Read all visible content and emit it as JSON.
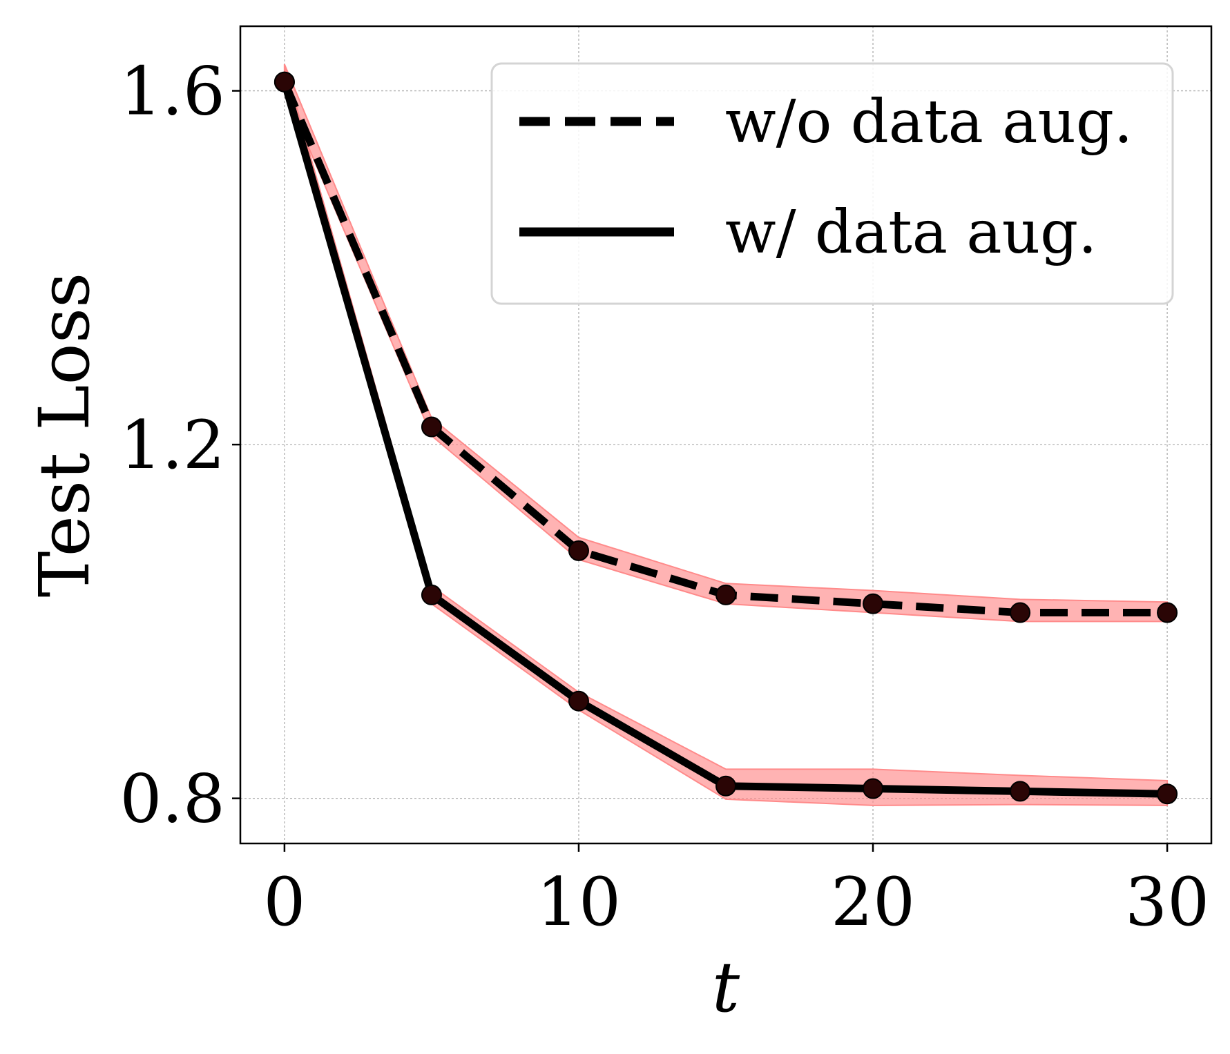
{
  "chart_data": {
    "type": "line",
    "title": "",
    "xlabel": "t",
    "ylabel": "Test Loss",
    "xlim": [
      -1.5,
      31.5
    ],
    "ylim": [
      0.749,
      1.673
    ],
    "x_ticks": [
      0,
      10,
      20,
      30
    ],
    "x_tick_labels": [
      "0",
      "10",
      "20",
      "30"
    ],
    "y_ticks": [
      0.8,
      1.2,
      1.6
    ],
    "y_tick_labels": [
      "0.8",
      "1.2",
      "1.6"
    ],
    "grid": true,
    "legend_position": "top-right",
    "band_color": "#ff8a8a",
    "line_color": "#000000",
    "series": [
      {
        "name": "w/o data aug.",
        "style": "dashed",
        "x": [
          0,
          5,
          10,
          15,
          20,
          25,
          30
        ],
        "y": [
          1.61,
          1.22,
          1.08,
          1.03,
          1.02,
          1.01,
          1.01
        ],
        "band_lower": [
          1.6,
          1.21,
          1.07,
          1.02,
          1.01,
          1.0,
          1.0
        ],
        "band_upper": [
          1.63,
          1.23,
          1.095,
          1.043,
          1.035,
          1.025,
          1.022
        ]
      },
      {
        "name": "w/ data aug.",
        "style": "solid",
        "x": [
          0,
          5,
          10,
          15,
          20,
          25,
          30
        ],
        "y": [
          1.61,
          1.03,
          0.91,
          0.814,
          0.811,
          0.808,
          0.805
        ],
        "band_lower": [
          1.6,
          1.02,
          0.9,
          0.799,
          0.792,
          0.793,
          0.792
        ],
        "band_upper": [
          1.63,
          1.04,
          0.92,
          0.833,
          0.833,
          0.826,
          0.82
        ]
      }
    ]
  }
}
